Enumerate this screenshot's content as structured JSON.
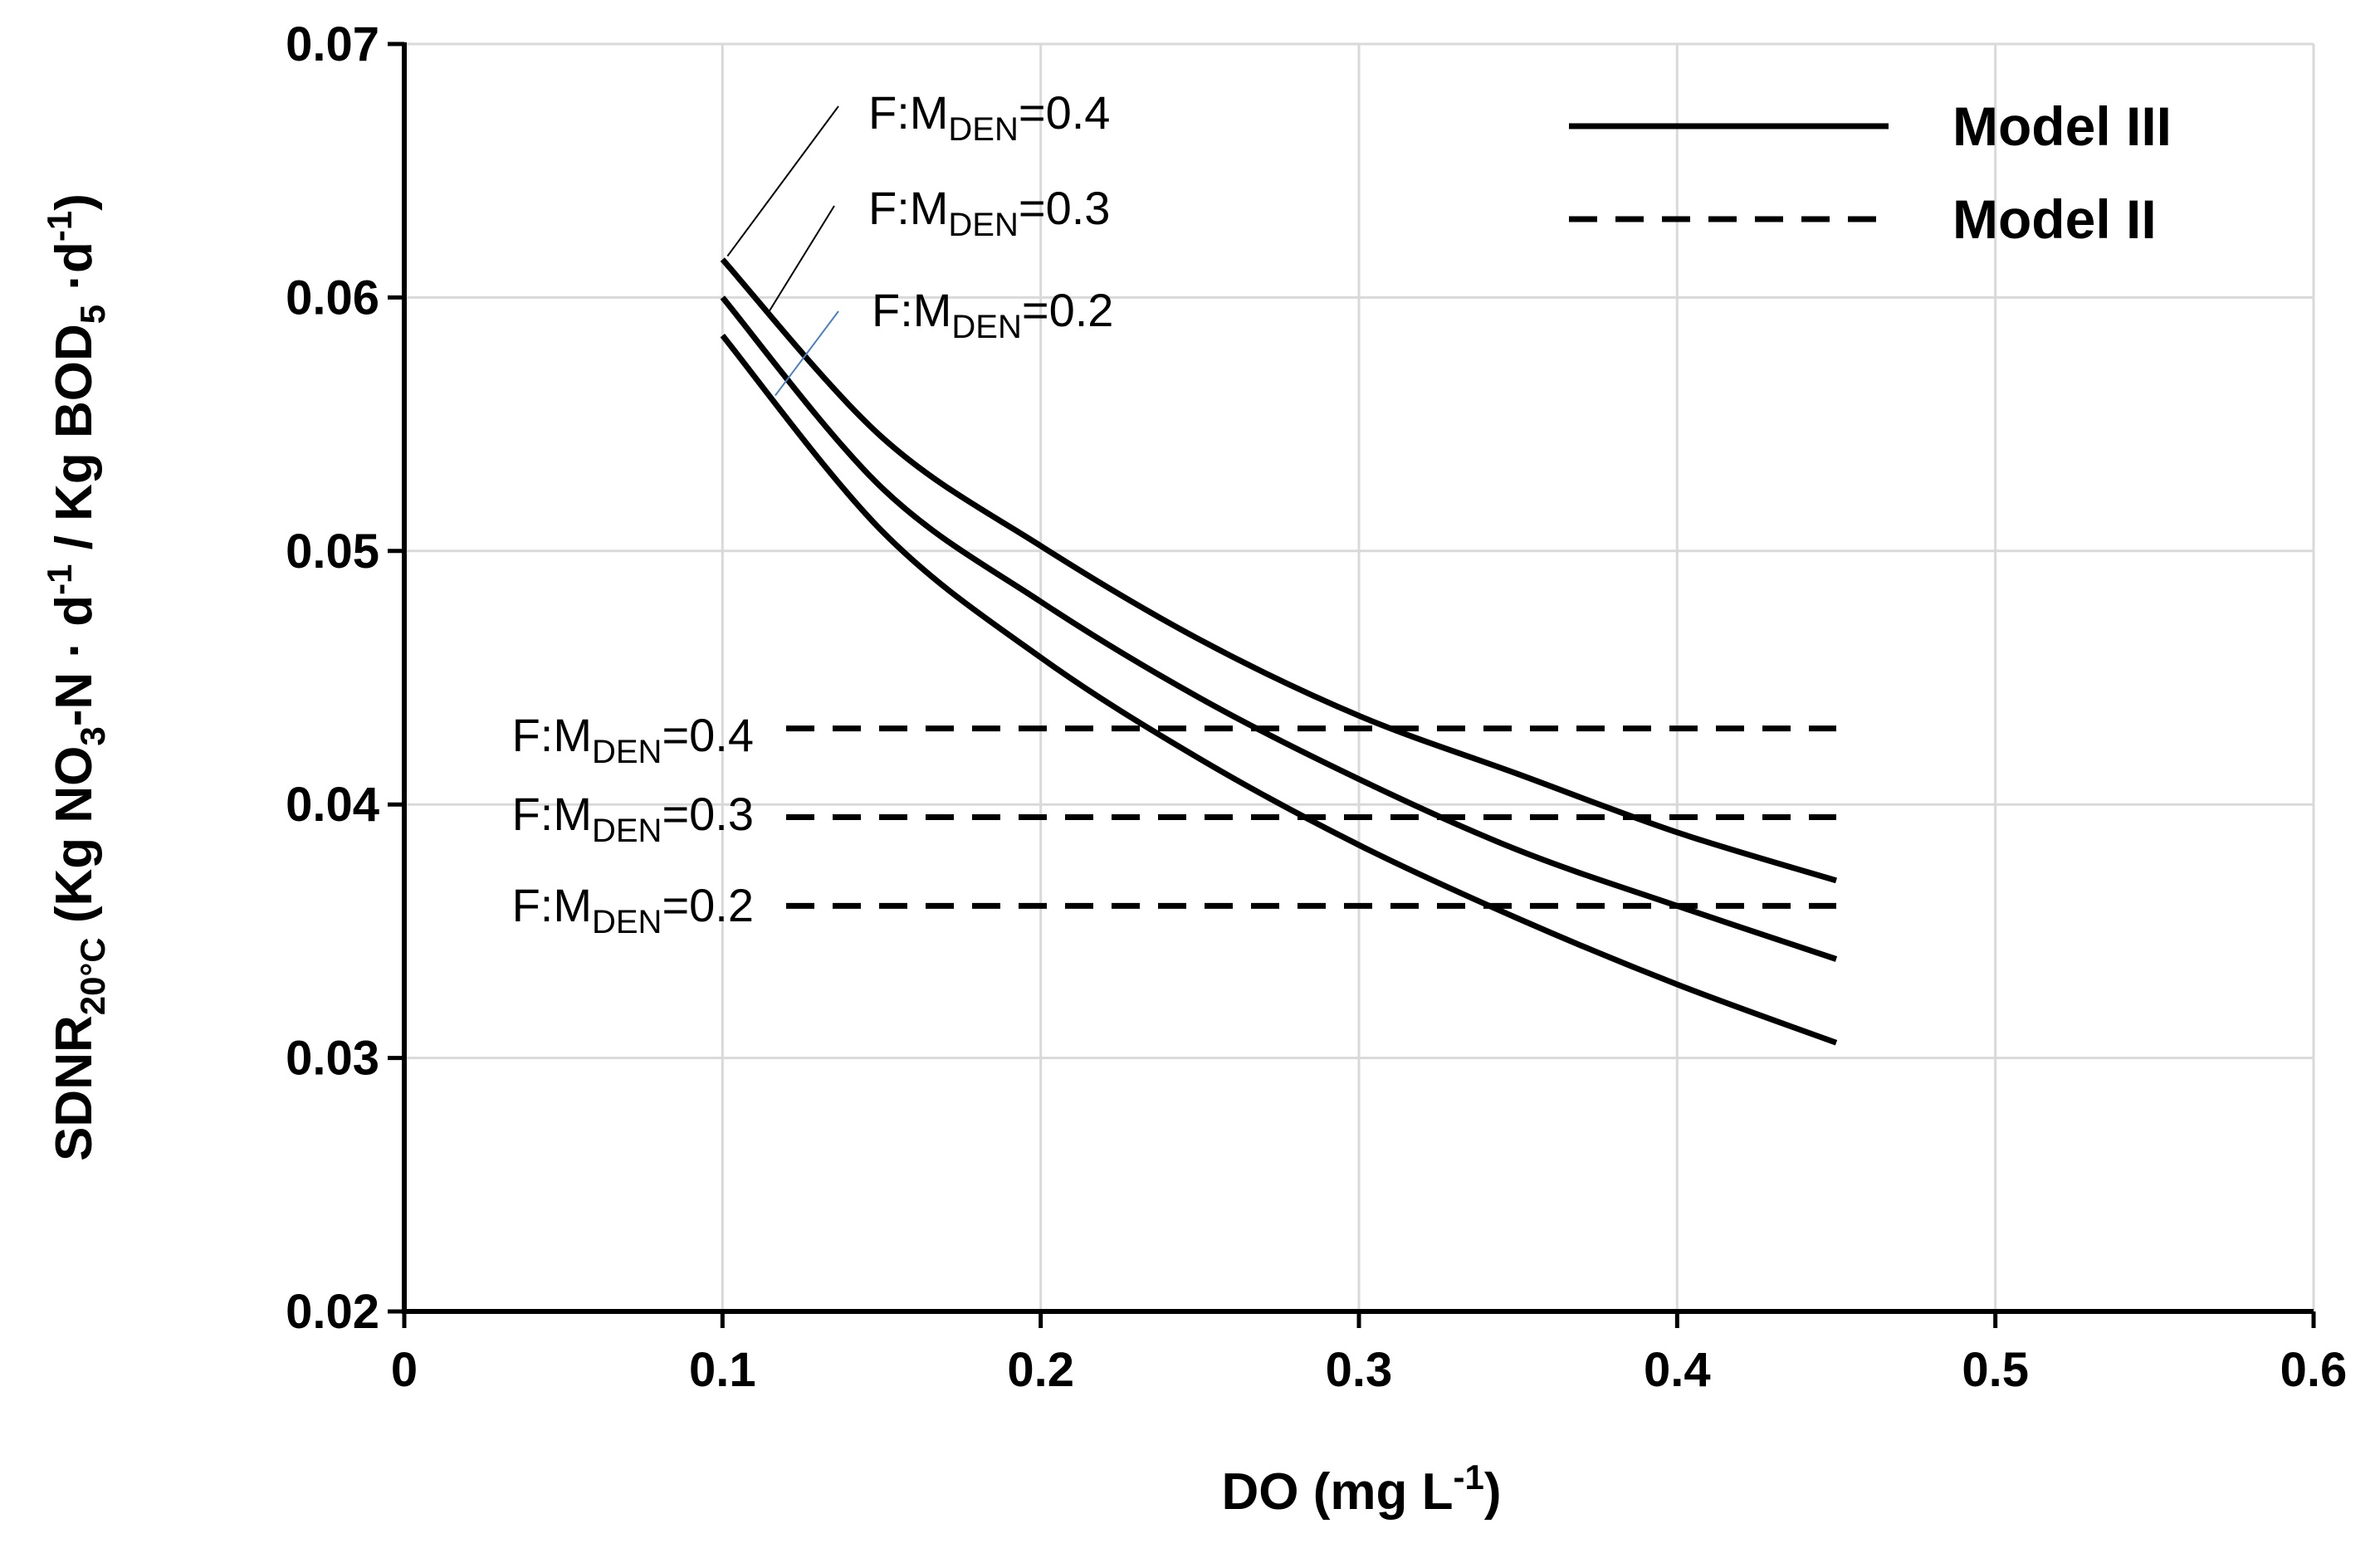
{
  "chart_data": {
    "type": "line",
    "title": "",
    "xlabel": "DO (mg L-1)",
    "ylabel": "SDNR20°C (Kg NO3-N · d-1 / Kg BOD5 ·d-1)",
    "xlabel_parts": {
      "main": "DO (mg L",
      "sup": "-1",
      "end": ")"
    },
    "ylabel_parts": {
      "a": "SDNR",
      "a_sub": "20°C",
      "b": "  (Kg NO",
      "b_sub": "3",
      "c": "-N · d",
      "c_sup": "-1",
      "d": " / Kg BOD",
      "d_sub": "5",
      "e": " ·d",
      "e_sup": "-1",
      "f": ")"
    },
    "xlim": [
      0,
      0.6
    ],
    "ylim": [
      0.02,
      0.07
    ],
    "x_ticks": [
      0,
      0.1,
      0.2,
      0.3,
      0.4,
      0.5,
      0.6
    ],
    "x_tick_labels": [
      "0",
      "0.1",
      "0.2",
      "0.3",
      "0.4",
      "0.5",
      "0.6"
    ],
    "y_ticks": [
      0.02,
      0.03,
      0.04,
      0.05,
      0.06,
      0.07
    ],
    "y_tick_labels": [
      "0.02",
      "0.03",
      "0.04",
      "0.05",
      "0.06",
      "0.07"
    ],
    "grid": true,
    "legend": {
      "position": "top-right",
      "items": [
        {
          "label": "Model III",
          "style": "solid"
        },
        {
          "label": "Model II",
          "style": "dashed"
        }
      ]
    },
    "series": [
      {
        "name": "Model III F:M_DEN=0.4",
        "model": "Model III",
        "style": "solid",
        "x": [
          0.1,
          0.15,
          0.2,
          0.25,
          0.3,
          0.35,
          0.4,
          0.45
        ],
        "values": [
          0.0615,
          0.0545,
          0.0502,
          0.0465,
          0.0435,
          0.0412,
          0.0389,
          0.037
        ]
      },
      {
        "name": "Model III F:M_DEN=0.3",
        "model": "Model III",
        "style": "solid",
        "x": [
          0.1,
          0.15,
          0.2,
          0.25,
          0.3,
          0.35,
          0.4,
          0.45
        ],
        "values": [
          0.06,
          0.0525,
          0.048,
          0.0442,
          0.041,
          0.0382,
          0.036,
          0.0339
        ]
      },
      {
        "name": "Model III F:M_DEN=0.2",
        "model": "Model III",
        "style": "solid",
        "x": [
          0.1,
          0.15,
          0.2,
          0.25,
          0.3,
          0.35,
          0.4,
          0.45
        ],
        "values": [
          0.0585,
          0.0508,
          0.0458,
          0.0418,
          0.0384,
          0.0355,
          0.0329,
          0.0306
        ]
      },
      {
        "name": "Model II F:M_DEN=0.4",
        "model": "Model II",
        "style": "dashed",
        "x": [
          0.12,
          0.45
        ],
        "values": [
          0.043,
          0.043
        ]
      },
      {
        "name": "Model II F:M_DEN=0.3",
        "model": "Model II",
        "style": "dashed",
        "x": [
          0.12,
          0.45
        ],
        "values": [
          0.0395,
          0.0395
        ]
      },
      {
        "name": "Model II F:M_DEN=0.2",
        "model": "Model II",
        "style": "dashed",
        "x": [
          0.12,
          0.45
        ],
        "values": [
          0.036,
          0.036
        ]
      }
    ],
    "annotations": [
      {
        "id": "solid-04",
        "prefix": "F:M",
        "sub": "DEN",
        "suffix": "=0.4",
        "target_x": 0.1,
        "target_y": 0.0615,
        "anchor": "upper"
      },
      {
        "id": "solid-03",
        "prefix": "F:M",
        "sub": "DEN",
        "suffix": "=0.3",
        "target_x": 0.113,
        "target_y": 0.0593,
        "anchor": "upper"
      },
      {
        "id": "solid-02",
        "prefix": "F:M",
        "sub": "DEN",
        "suffix": "=0.2",
        "target_x": 0.115,
        "target_y": 0.056,
        "anchor": "upper"
      },
      {
        "id": "dash-04",
        "prefix": "F:M",
        "sub": "DEN",
        "suffix": "=0.4",
        "target_x": 0.12,
        "target_y": 0.043,
        "anchor": "left"
      },
      {
        "id": "dash-03",
        "prefix": "F:M",
        "sub": "DEN",
        "suffix": "=0.3",
        "target_x": 0.12,
        "target_y": 0.0395,
        "anchor": "left"
      },
      {
        "id": "dash-02",
        "prefix": "F:M",
        "sub": "DEN",
        "suffix": "=0.2",
        "target_x": 0.12,
        "target_y": 0.036,
        "anchor": "left"
      }
    ]
  }
}
